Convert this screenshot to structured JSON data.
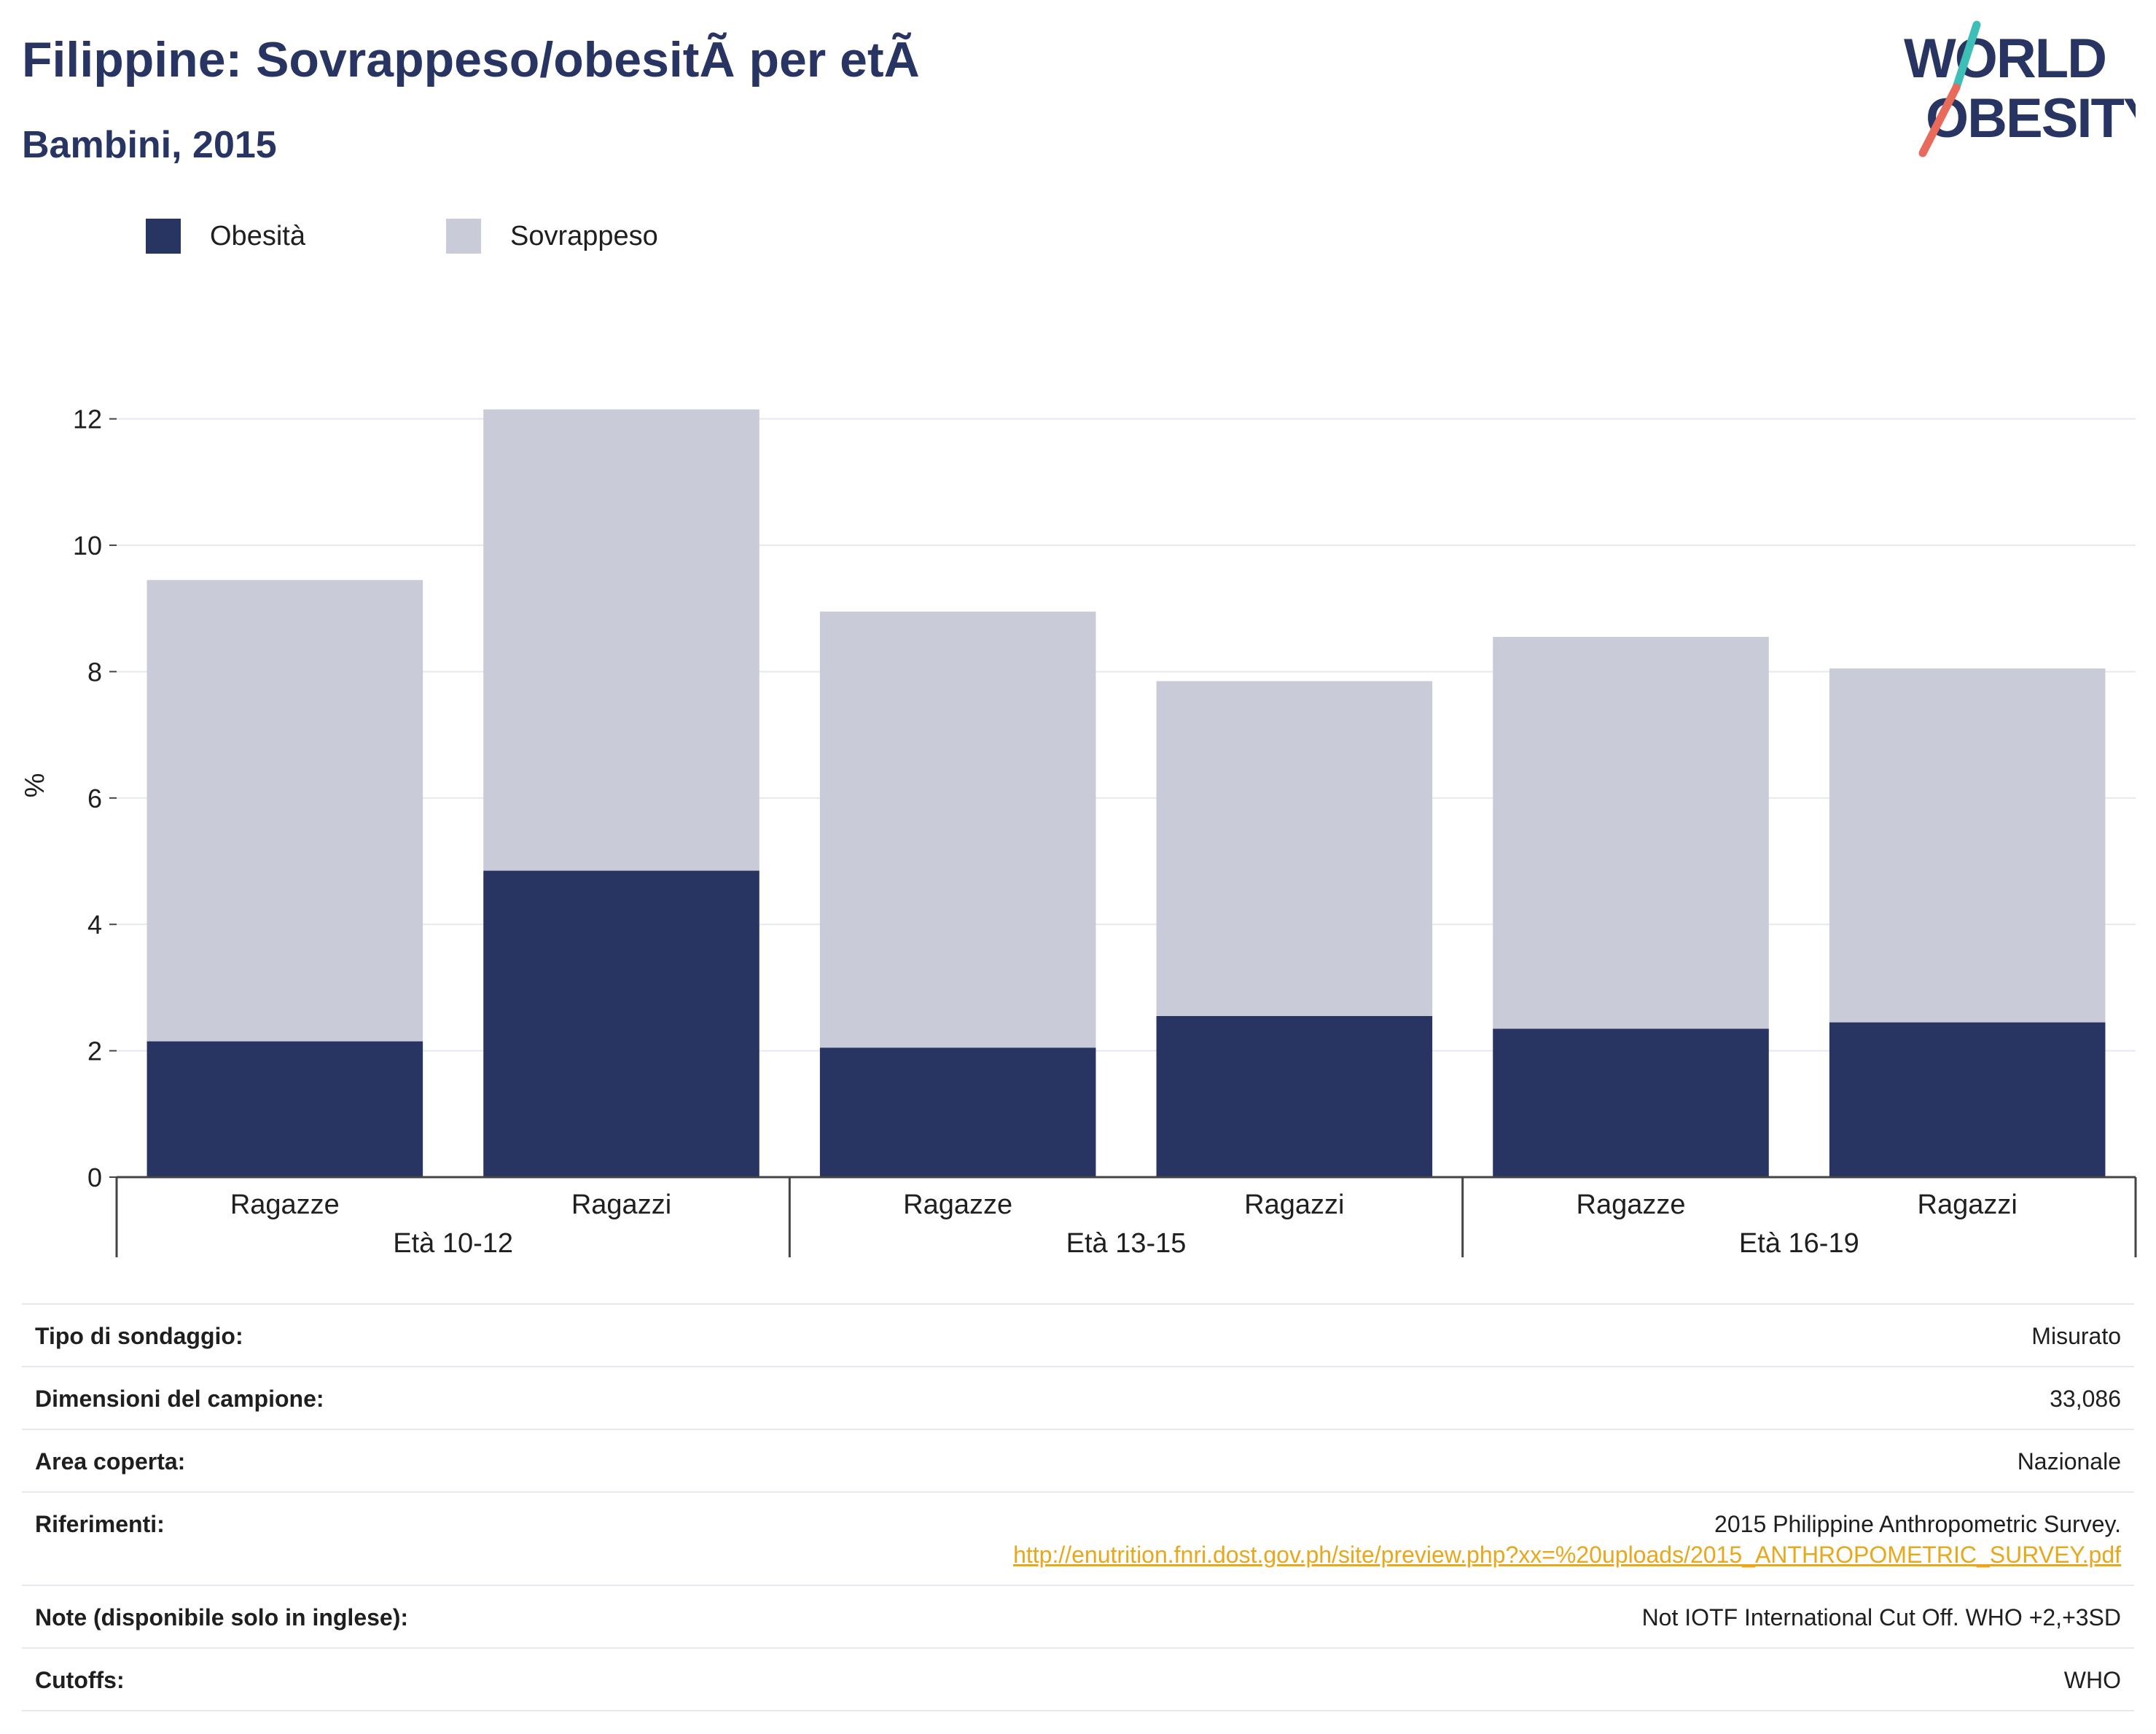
{
  "header": {
    "title": "Filippine: Sovrappeso/obesitÃ  per etÃ",
    "subtitle": "Bambini, 2015"
  },
  "logo": {
    "line1": "WORLD",
    "line2": "OBESITY",
    "colors": {
      "text": "#283462",
      "slash_top": "#3dbfb8",
      "slash_bottom": "#e86a5a"
    }
  },
  "legend": {
    "items": [
      {
        "label": "Obesità",
        "color": "#283462"
      },
      {
        "label": "Sovrappeso",
        "color": "#c9cbd8"
      }
    ]
  },
  "chart_data": {
    "type": "bar",
    "stacked": true,
    "categories": [
      {
        "group": "Età 10-12",
        "label": "Ragazze"
      },
      {
        "group": "Età 10-12",
        "label": "Ragazzi"
      },
      {
        "group": "Età 13-15",
        "label": "Ragazze"
      },
      {
        "group": "Età 13-15",
        "label": "Ragazzi"
      },
      {
        "group": "Età 16-19",
        "label": "Ragazze"
      },
      {
        "group": "Età 16-19",
        "label": "Ragazzi"
      }
    ],
    "groups": [
      "Età 10-12",
      "Età 13-15",
      "Età 16-19"
    ],
    "series": [
      {
        "name": "Obesità",
        "color": "#283462",
        "values": [
          2.15,
          4.85,
          2.05,
          2.55,
          2.35,
          2.45
        ]
      },
      {
        "name": "Sovrappeso",
        "color": "#c9cbd8",
        "values": [
          7.3,
          7.3,
          6.9,
          5.3,
          6.2,
          5.6
        ]
      }
    ],
    "ylabel": "%",
    "ylim": [
      0,
      12.4
    ],
    "yticks": [
      0,
      2,
      4,
      6,
      8,
      10,
      12
    ],
    "grid": true,
    "legend_position": "top-left"
  },
  "meta": {
    "rows": [
      {
        "label": "Tipo di sondaggio:",
        "value": "Misurato"
      },
      {
        "label": "Dimensioni del campione:",
        "value": "33,086"
      },
      {
        "label": "Area coperta:",
        "value": "Nazionale"
      },
      {
        "label": "Riferimenti:",
        "value": "2015 Philippine Anthropometric Survey.",
        "link": "http://enutrition.fnri.dost.gov.ph/site/preview.php?xx=%20uploads/2015_ANTHROPOMETRIC_SURVEY.pdf",
        "link_color": "#e8a81b"
      },
      {
        "label": "Note (disponibile solo in inglese):",
        "value": "Not IOTF International Cut Off. WHO +2,+3SD"
      },
      {
        "label": "Cutoffs:",
        "value": "WHO"
      }
    ]
  }
}
